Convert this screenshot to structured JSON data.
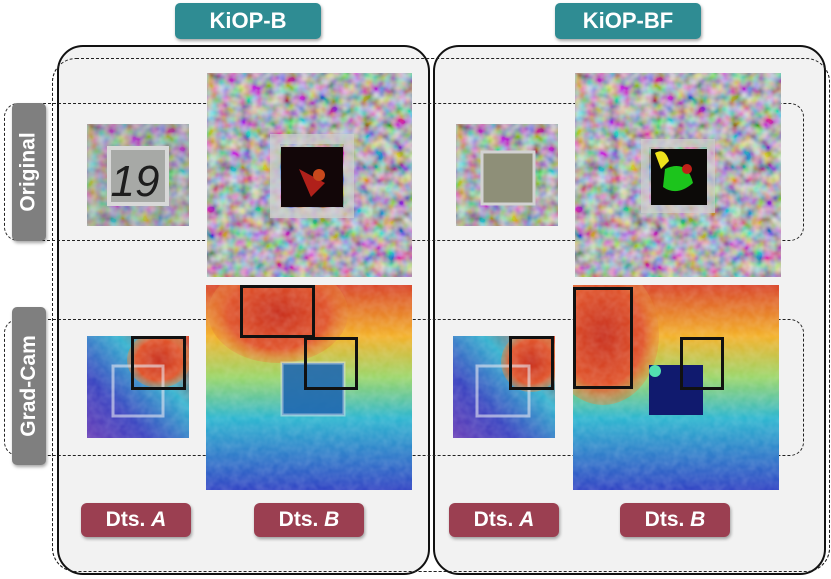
{
  "columns": [
    {
      "label": "KiOP-B"
    },
    {
      "label": "KiOP-BF"
    }
  ],
  "rows": [
    {
      "label": "Original"
    },
    {
      "label": "Grad-Cam"
    }
  ],
  "datasets": {
    "a": {
      "prefix": "Dts.",
      "letter": "A"
    },
    "b": {
      "prefix": "Dts.",
      "letter": "B"
    }
  },
  "original_small_digits": "19",
  "colors": {
    "teal_label": "#2f8c93",
    "row_label": "#7f7f7f",
    "dataset_badge": "#9b3f51",
    "panel_background": "#f2f2f2"
  }
}
